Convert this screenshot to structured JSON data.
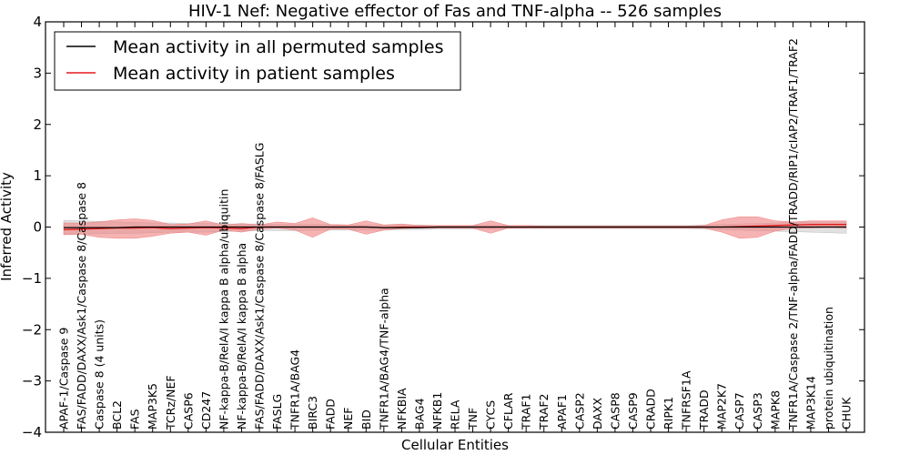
{
  "chart_data": {
    "type": "line",
    "title": "HIV-1 Nef: Negative effector of Fas and TNF-alpha -- 526 samples",
    "xlabel": "Cellular Entities",
    "ylabel": "Inferred Activity",
    "ylim": [
      -4,
      4
    ],
    "yticks": [
      "4",
      "3",
      "2",
      "1",
      "0",
      "−1",
      "−2",
      "−3",
      "−4"
    ],
    "categories": [
      "APAF-1/Caspase 9",
      "FAS/FADD/DAXX/Ask1/Caspase 8/Caspase 8",
      "Caspase 8 (4 units)",
      "BCL2",
      "FAS",
      "MAP3K5",
      "TCRz/NEF",
      "CASP6",
      "CD247",
      "NF-kappa-B/RelA/I kappa B alpha/ubiquitin",
      "NF-kappa-B/RelA/I kappa B alpha",
      "FAS/FADD/DAXX/Ask1/Caspase 8/Caspase 8/FASLG",
      "FASLG",
      "TNFR1A/BAG4",
      "BIRC3",
      "FADD",
      "NEF",
      "BID",
      "TNFR1A/BAG4/TNF-alpha",
      "NFKBIA",
      "BAG4",
      "NFKB1",
      "RELA",
      "TNF",
      "CYCS",
      "CFLAR",
      "TRAF1",
      "TRAF2",
      "APAF1",
      "CASP2",
      "DAXX",
      "CASP8",
      "CASP9",
      "CRADD",
      "RIPK1",
      "TNFRSF1A",
      "TRADD",
      "MAP2K7",
      "CASP7",
      "CASP3",
      "MAPK8",
      "TNFR1A/Caspase 2/TNF-alpha/FADD/TRADD/RIP1/cIAP2/TRAF1/TRAF2",
      "MAP3K14",
      "protein ubiquitination",
      "CHUK"
    ],
    "series": [
      {
        "name": "Mean activity in all permuted samples",
        "color": "#000000",
        "band_color": "#bdbdbd",
        "values": [
          -0.01,
          -0.01,
          -0.01,
          -0.01,
          0.0,
          0.0,
          0.0,
          0.0,
          0.0,
          0.0,
          0.0,
          0.0,
          0.0,
          0.0,
          0.0,
          0.0,
          0.0,
          0.0,
          -0.01,
          -0.01,
          -0.01,
          0.0,
          0.0,
          0.0,
          0.0,
          0.0,
          0.0,
          0.0,
          0.0,
          0.0,
          0.0,
          0.0,
          0.0,
          0.0,
          0.0,
          0.0,
          0.0,
          0.0,
          0.0,
          0.0,
          0.0,
          0.0,
          0.0,
          0.0,
          0.0
        ],
        "band_low": [
          -0.14,
          -0.14,
          -0.13,
          -0.13,
          -0.12,
          -0.11,
          -0.1,
          -0.1,
          -0.1,
          -0.09,
          -0.08,
          -0.07,
          -0.07,
          -0.07,
          -0.06,
          -0.06,
          -0.06,
          -0.06,
          -0.06,
          -0.05,
          -0.05,
          -0.04,
          -0.04,
          -0.04,
          -0.04,
          -0.03,
          -0.03,
          -0.03,
          -0.03,
          -0.03,
          -0.03,
          -0.03,
          -0.03,
          -0.03,
          -0.03,
          -0.03,
          -0.04,
          -0.05,
          -0.06,
          -0.07,
          -0.08,
          -0.09,
          -0.1,
          -0.11,
          -0.12
        ],
        "band_high": [
          0.13,
          0.12,
          0.11,
          0.1,
          0.09,
          0.08,
          0.08,
          0.07,
          0.07,
          0.06,
          0.06,
          0.06,
          0.05,
          0.05,
          0.05,
          0.05,
          0.04,
          0.04,
          0.04,
          0.04,
          0.04,
          0.03,
          0.03,
          0.03,
          0.03,
          0.03,
          0.03,
          0.03,
          0.03,
          0.03,
          0.03,
          0.03,
          0.03,
          0.03,
          0.03,
          0.03,
          0.04,
          0.05,
          0.06,
          0.07,
          0.08,
          0.09,
          0.1,
          0.1,
          0.1
        ]
      },
      {
        "name": "Mean activity in patient samples",
        "color": "#e41a1c",
        "band_color": "#f08080",
        "values": [
          -0.05,
          -0.04,
          -0.03,
          -0.02,
          -0.02,
          -0.01,
          -0.03,
          -0.02,
          -0.01,
          -0.02,
          -0.03,
          0.0,
          0.0,
          0.0,
          0.0,
          0.0,
          0.0,
          0.0,
          -0.01,
          0.0,
          0.0,
          0.0,
          0.0,
          0.0,
          0.0,
          0.0,
          0.0,
          0.0,
          0.0,
          0.0,
          0.0,
          0.0,
          0.0,
          0.0,
          0.0,
          0.0,
          0.0,
          0.0,
          0.01,
          0.02,
          0.03,
          0.04,
          0.05,
          0.05,
          0.05
        ],
        "band_low": [
          -0.15,
          -0.14,
          -0.2,
          -0.22,
          -0.22,
          -0.18,
          -0.12,
          -0.1,
          -0.16,
          -0.06,
          -0.1,
          -0.04,
          -0.02,
          -0.06,
          -0.2,
          -0.04,
          -0.04,
          -0.14,
          -0.06,
          -0.03,
          -0.02,
          -0.02,
          -0.02,
          -0.02,
          -0.12,
          -0.02,
          -0.02,
          -0.02,
          -0.02,
          -0.02,
          -0.02,
          -0.02,
          -0.02,
          -0.02,
          -0.02,
          -0.02,
          -0.02,
          -0.1,
          -0.22,
          -0.2,
          -0.08,
          -0.02,
          -0.02,
          -0.01,
          -0.02
        ],
        "band_high": [
          0.08,
          0.08,
          0.1,
          0.14,
          0.16,
          0.13,
          0.05,
          0.06,
          0.12,
          0.04,
          0.07,
          0.04,
          0.1,
          0.07,
          0.18,
          0.05,
          0.04,
          0.12,
          0.04,
          0.06,
          0.03,
          0.03,
          0.03,
          0.03,
          0.12,
          0.03,
          0.03,
          0.02,
          0.02,
          0.02,
          0.02,
          0.02,
          0.02,
          0.02,
          0.02,
          0.02,
          0.03,
          0.14,
          0.2,
          0.2,
          0.12,
          0.1,
          0.12,
          0.12,
          0.12
        ]
      }
    ],
    "legend_position": "top-left",
    "grid": false
  }
}
